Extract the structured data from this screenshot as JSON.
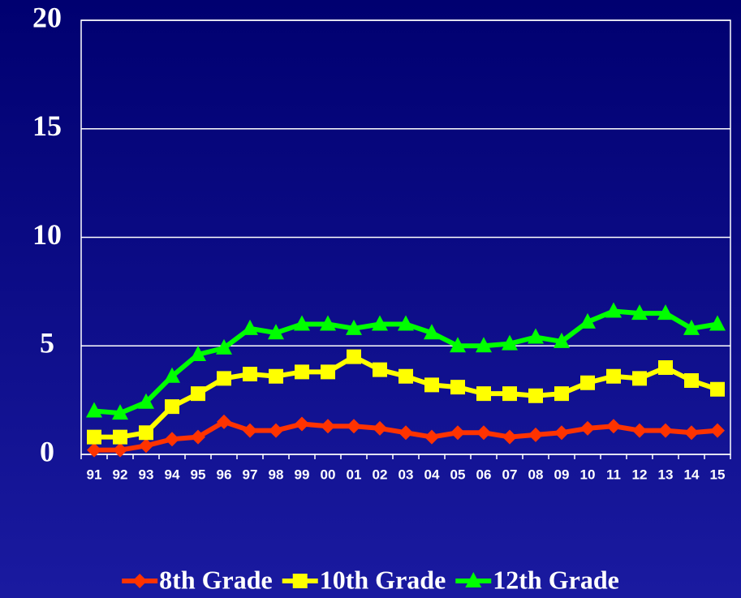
{
  "chart_data": {
    "type": "line",
    "categories": [
      "91",
      "92",
      "93",
      "94",
      "95",
      "96",
      "97",
      "98",
      "99",
      "00",
      "01",
      "02",
      "03",
      "04",
      "05",
      "06",
      "07",
      "08",
      "09",
      "10",
      "11",
      "12",
      "13",
      "14",
      "15"
    ],
    "series": [
      {
        "name": "8th Grade",
        "color": "#ff3300",
        "marker": "diamond",
        "values": [
          0.2,
          0.2,
          0.4,
          0.7,
          0.8,
          1.5,
          1.1,
          1.1,
          1.4,
          1.3,
          1.3,
          1.2,
          1.0,
          0.8,
          1.0,
          1.0,
          0.8,
          0.9,
          1.0,
          1.2,
          1.3,
          1.1,
          1.1,
          1.0,
          1.1
        ]
      },
      {
        "name": "10th Grade",
        "color": "#ffff00",
        "marker": "square",
        "values": [
          0.8,
          0.8,
          1.0,
          2.2,
          2.8,
          3.5,
          3.7,
          3.6,
          3.8,
          3.8,
          4.5,
          3.9,
          3.6,
          3.2,
          3.1,
          2.8,
          2.8,
          2.7,
          2.8,
          3.3,
          3.6,
          3.5,
          4.0,
          3.4,
          3.0
        ]
      },
      {
        "name": "12th Grade",
        "color": "#00ff00",
        "marker": "triangle",
        "values": [
          2.0,
          1.9,
          2.4,
          3.6,
          4.6,
          4.9,
          5.8,
          5.6,
          6.0,
          6.0,
          5.8,
          6.0,
          6.0,
          5.6,
          5.0,
          5.0,
          5.1,
          5.4,
          5.2,
          6.1,
          6.6,
          6.5,
          6.5,
          5.8,
          6.0
        ]
      }
    ],
    "ylim": [
      0,
      20
    ],
    "yticks": [
      0,
      5,
      10,
      15,
      20
    ],
    "grid": true,
    "legend": "bottom"
  }
}
